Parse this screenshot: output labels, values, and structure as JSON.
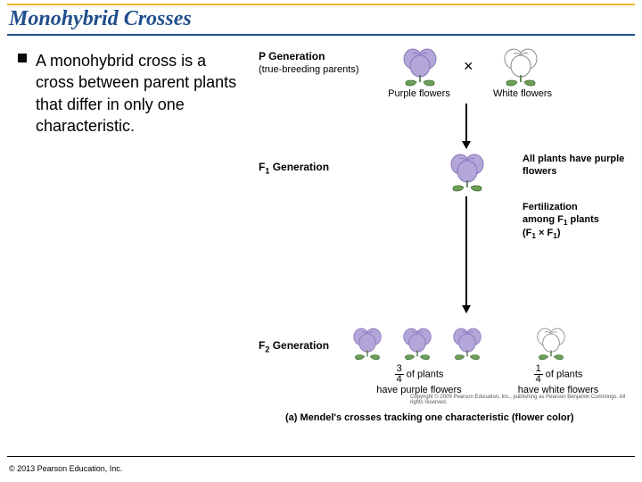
{
  "title": {
    "text": "Monohybrid Crosses",
    "color": "#1f4e8c",
    "fontsize_pt": 24
  },
  "rules": {
    "top_color": "#f2b233",
    "under_color": "#1f4e8c"
  },
  "bullet": {
    "mark_color": "#0a0a0a",
    "text": "A monohybrid cross is a cross between parent plants that differ in only one characteristic.",
    "fontsize_pt": 18
  },
  "diagram": {
    "labels": {
      "p_gen": "P Generation",
      "p_gen_sub": "(true-breeding parents)",
      "f1_gen": "F",
      "f1_gen_sub": "1",
      "f1_gen_tail": " Generation",
      "f2_gen": "F",
      "f2_gen_sub": "2",
      "f2_gen_tail": " Generation"
    },
    "cross_symbol": "×",
    "flowers": {
      "purple_color": "#b3a6d9",
      "purple_shadow": "#8877bb",
      "white_color": "#ffffff",
      "white_stroke": "#888888",
      "leaf_color": "#6fa05a"
    },
    "captions": {
      "p_left": "Purple flowers",
      "p_right": "White flowers",
      "f1_right": "All plants have purple flowers",
      "fert_line1": "Fertilization",
      "fert_line2": "among F",
      "fert_line2_sub": "1",
      "fert_line2_tail": " plants",
      "fert_line3_a": "(F",
      "fert_line3_a_sub": "1",
      "fert_line3_mid": " × F",
      "fert_line3_b_sub": "1",
      "fert_line3_end": ")",
      "f2_left_num": "3",
      "f2_left_den": "4",
      "f2_left_tail": " of plants",
      "f2_left_line2": "have purple flowers",
      "f2_right_num": "1",
      "f2_right_den": "4",
      "f2_right_tail": " of plants",
      "f2_right_line2": "have white flowers"
    },
    "figure_caption": "(a) Mendel's crosses tracking one characteristic (flower color)",
    "tiny_copyright": "Copyright © 2009 Pearson Education, Inc., publishing as Pearson Benjamin Cummings. All rights reserved."
  },
  "copyright": "© 2013 Pearson Education, Inc."
}
